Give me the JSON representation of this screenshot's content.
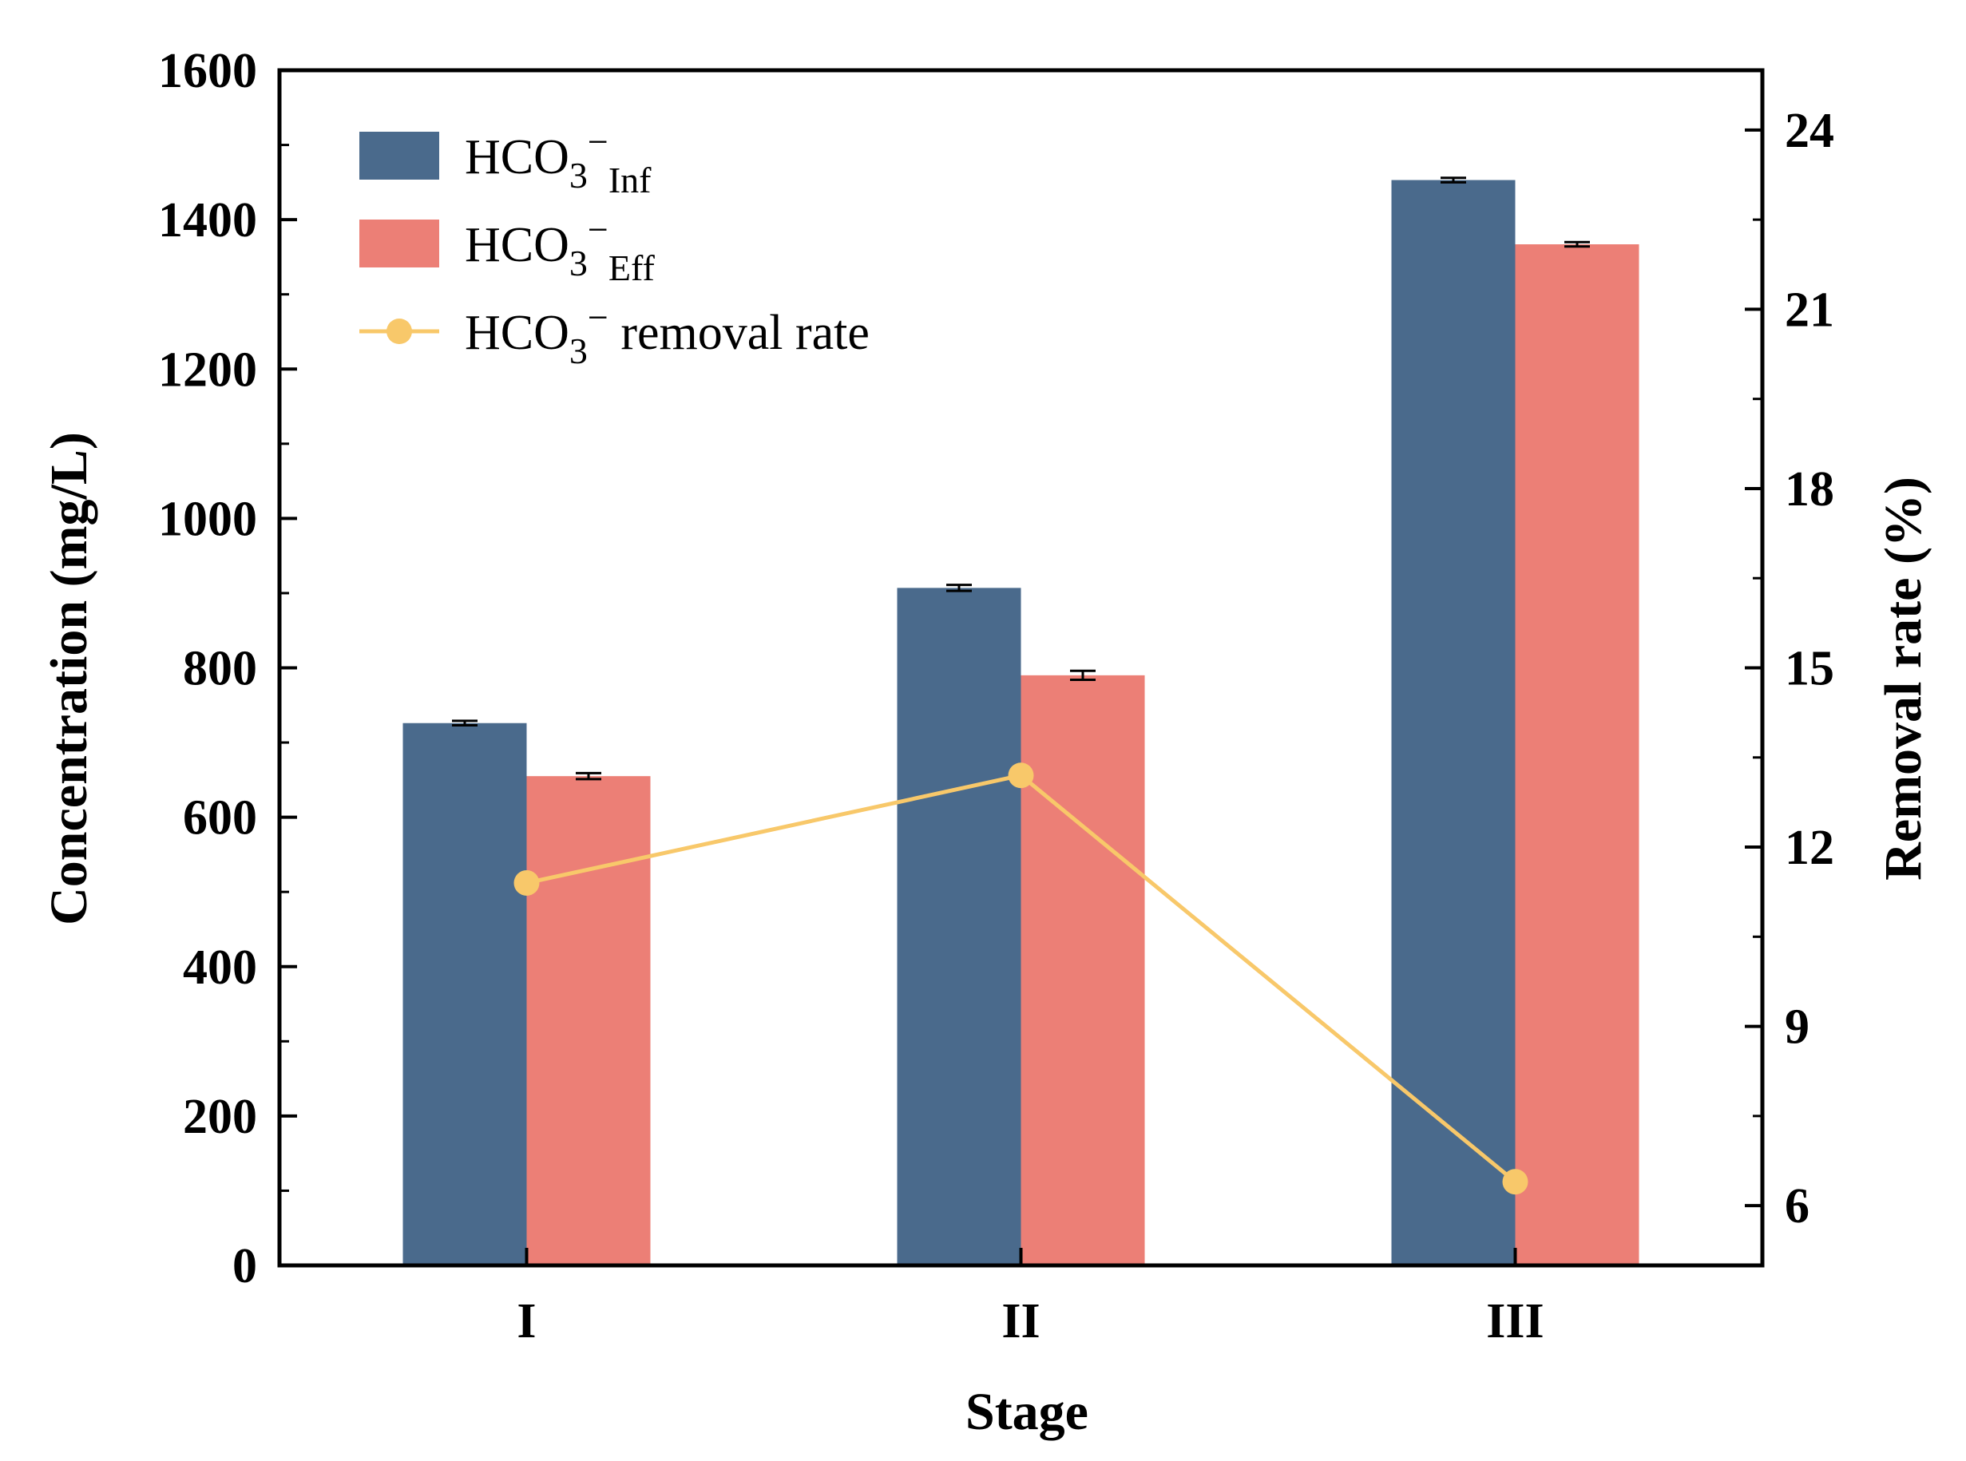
{
  "chart_data": {
    "type": "bar",
    "categories": [
      "I",
      "II",
      "III"
    ],
    "xlabel": "Stage",
    "ylabel": "Concentration (mg/L)",
    "y2label": "Removal rate (%)",
    "ylim": [
      0,
      1600
    ],
    "y_ticks": [
      0,
      200,
      400,
      600,
      800,
      1000,
      1200,
      1400,
      1600
    ],
    "y2lim": [
      5,
      25
    ],
    "y2_ticks": [
      6,
      9,
      12,
      15,
      18,
      21,
      24
    ],
    "legend_position": "top-left",
    "grid": false,
    "series": [
      {
        "name": "HCO3−Inf",
        "legend_main": "HCO",
        "legend_sub": "3",
        "legend_sup": "−",
        "legend_suffix_sub": "Inf",
        "legend_tail": "",
        "kind": "bar",
        "axis": "left",
        "color": "#4a6a8c",
        "values": [
          726,
          907,
          1453
        ],
        "errors": [
          3,
          4,
          3
        ]
      },
      {
        "name": "HCO3−Eff",
        "legend_main": "HCO",
        "legend_sub": "3",
        "legend_sup": "−",
        "legend_suffix_sub": "Eff",
        "legend_tail": "",
        "kind": "bar",
        "axis": "left",
        "color": "#ec7f76",
        "values": [
          655,
          790,
          1367
        ],
        "errors": [
          4,
          6,
          3
        ]
      },
      {
        "name": "HCO3− removal rate",
        "legend_main": "HCO",
        "legend_sub": "3",
        "legend_sup": "−",
        "legend_suffix_sub": "",
        "legend_tail": " removal rate",
        "kind": "line",
        "axis": "right",
        "color": "#f8c86a",
        "values": [
          11.4,
          13.2,
          6.4
        ]
      }
    ]
  }
}
